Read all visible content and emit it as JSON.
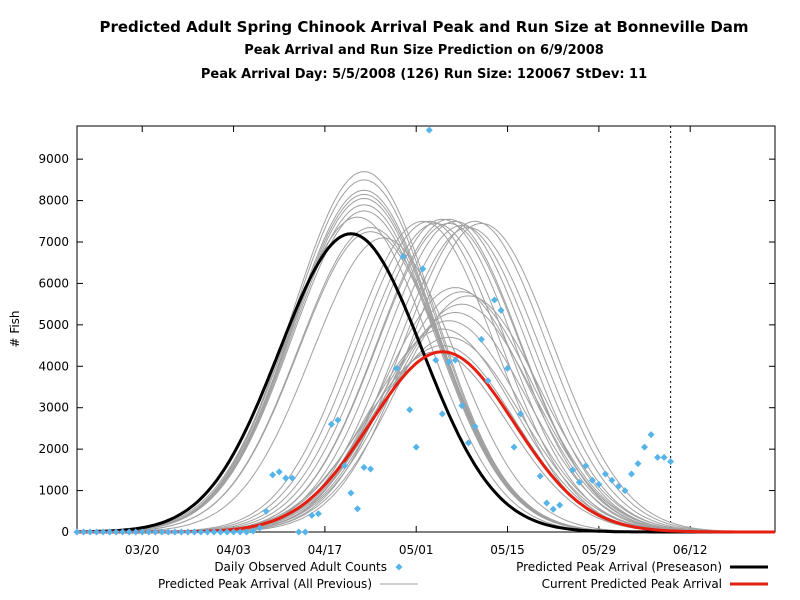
{
  "chart_data": {
    "type": "line",
    "title": "Predicted Adult Spring Chinook Arrival Peak and Run Size at Bonneville Dam",
    "subtitle": "Peak Arrival and Run Size Prediction on 6/9/2008",
    "subtitle2": "Peak Arrival Day: 5/5/2008 (126) Run Size: 120067 StDev: 11",
    "ylabel": "# Fish",
    "xlabel": "",
    "xlim": [
      70,
      177
    ],
    "ylim": [
      0,
      9800
    ],
    "x_ticks": [
      {
        "day": 80,
        "label": "03/20"
      },
      {
        "day": 94,
        "label": "04/03"
      },
      {
        "day": 108,
        "label": "04/17"
      },
      {
        "day": 122,
        "label": "05/01"
      },
      {
        "day": 136,
        "label": "05/15"
      },
      {
        "day": 150,
        "label": "05/29"
      },
      {
        "day": 164,
        "label": "06/12"
      }
    ],
    "y_ticks": [
      0,
      1000,
      2000,
      3000,
      4000,
      5000,
      6000,
      7000,
      8000,
      9000
    ],
    "vertical_marker_day": 161,
    "legend": {
      "observed": "Daily Observed Adult Counts",
      "previous": "Predicted Peak Arrival (All Previous)",
      "preseason": "Predicted Peak Arrival (Preseason)",
      "current": "Current Predicted Peak Arrival"
    },
    "colors": {
      "observed": "#56b4e9",
      "previous": "#a0a0a0",
      "preseason": "#000000",
      "current": "#e51e10"
    },
    "series": {
      "observed": {
        "name": "Daily Observed Adult Counts",
        "points": [
          [
            70,
            0
          ],
          [
            71,
            0
          ],
          [
            72,
            0
          ],
          [
            73,
            0
          ],
          [
            74,
            0
          ],
          [
            75,
            0
          ],
          [
            76,
            0
          ],
          [
            77,
            0
          ],
          [
            78,
            0
          ],
          [
            79,
            0
          ],
          [
            80,
            0
          ],
          [
            81,
            0
          ],
          [
            82,
            0
          ],
          [
            83,
            0
          ],
          [
            84,
            0
          ],
          [
            85,
            0
          ],
          [
            86,
            0
          ],
          [
            87,
            0
          ],
          [
            88,
            0
          ],
          [
            89,
            0
          ],
          [
            90,
            0
          ],
          [
            91,
            0
          ],
          [
            92,
            0
          ],
          [
            93,
            0
          ],
          [
            94,
            0
          ],
          [
            95,
            0
          ],
          [
            96,
            0
          ],
          [
            97,
            20
          ],
          [
            98,
            100
          ],
          [
            99,
            500
          ],
          [
            100,
            1380
          ],
          [
            101,
            1450
          ],
          [
            102,
            1300
          ],
          [
            103,
            1300
          ],
          [
            104,
            0
          ],
          [
            105,
            0
          ],
          [
            106,
            400
          ],
          [
            107,
            440
          ],
          [
            109,
            2600
          ],
          [
            110,
            2700
          ],
          [
            111,
            1600
          ],
          [
            112,
            940
          ],
          [
            113,
            560
          ],
          [
            114,
            1560
          ],
          [
            115,
            1520
          ],
          [
            119,
            3950
          ],
          [
            120,
            6650
          ],
          [
            121,
            2950
          ],
          [
            122,
            2050
          ],
          [
            123,
            6350
          ],
          [
            124,
            9700
          ],
          [
            125,
            4150
          ],
          [
            126,
            2850
          ],
          [
            127,
            4100
          ],
          [
            128,
            4150
          ],
          [
            129,
            3050
          ],
          [
            130,
            2150
          ],
          [
            131,
            2550
          ],
          [
            132,
            4650
          ],
          [
            133,
            3650
          ],
          [
            134,
            5600
          ],
          [
            135,
            5350
          ],
          [
            136,
            3950
          ],
          [
            137,
            2050
          ],
          [
            138,
            2850
          ],
          [
            141,
            1350
          ],
          [
            142,
            700
          ],
          [
            143,
            550
          ],
          [
            144,
            650
          ],
          [
            146,
            1500
          ],
          [
            147,
            1200
          ],
          [
            148,
            1600
          ],
          [
            149,
            1250
          ],
          [
            150,
            1150
          ],
          [
            151,
            1400
          ],
          [
            152,
            1250
          ],
          [
            153,
            1100
          ],
          [
            154,
            1000
          ],
          [
            155,
            1400
          ],
          [
            156,
            1650
          ],
          [
            157,
            2050
          ],
          [
            158,
            2350
          ],
          [
            159,
            1800
          ],
          [
            160,
            1800
          ],
          [
            161,
            1700
          ]
        ]
      },
      "preseason": {
        "name": "Predicted Peak Arrival (Preseason)",
        "peak_day": 112,
        "peak_value": 7200,
        "sd": 11
      },
      "current": {
        "name": "Current Predicted Peak Arrival",
        "peak_day": 126,
        "peak_value": 4350,
        "sd": 11
      },
      "previous": {
        "name": "Predicted Peak Arrival (All Previous)",
        "sd": 11,
        "curves": [
          [
            114,
            8700
          ],
          [
            114,
            8500
          ],
          [
            114,
            8250
          ],
          [
            114,
            8150
          ],
          [
            114,
            8050
          ],
          [
            114,
            7900
          ],
          [
            114,
            7750
          ],
          [
            113,
            7600
          ],
          [
            115,
            7350
          ],
          [
            115,
            7250
          ],
          [
            117,
            7100
          ],
          [
            123,
            7500
          ],
          [
            124,
            7500
          ],
          [
            125,
            7450
          ],
          [
            126,
            7550
          ],
          [
            127,
            7550
          ],
          [
            127,
            7450
          ],
          [
            128,
            7500
          ],
          [
            129,
            7400
          ],
          [
            131,
            7500
          ],
          [
            132,
            7450
          ],
          [
            130,
            7350
          ],
          [
            128,
            5900
          ],
          [
            129,
            5800
          ],
          [
            130,
            5700
          ],
          [
            129,
            5500
          ],
          [
            128,
            5300
          ],
          [
            127,
            5100
          ],
          [
            126,
            4900
          ],
          [
            127,
            4700
          ],
          [
            126,
            4500
          ],
          [
            125,
            4350
          ]
        ]
      }
    }
  }
}
